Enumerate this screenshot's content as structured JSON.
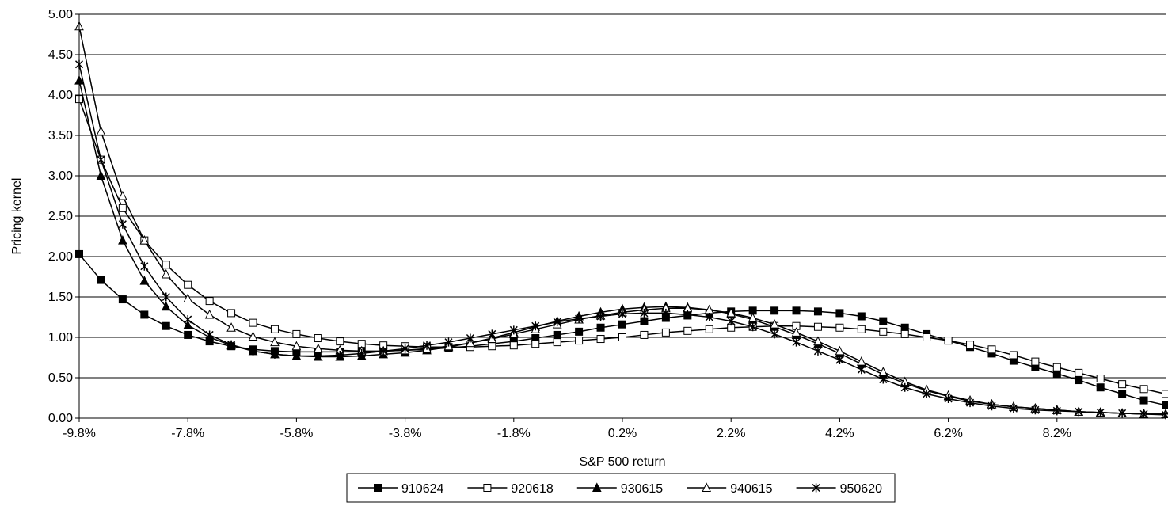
{
  "chart_data": {
    "type": "line",
    "title": "",
    "xlabel": "S&P 500 return",
    "ylabel": "Pricing kernel",
    "xlim": [
      -9.8,
      10.2
    ],
    "ylim": [
      0,
      5
    ],
    "grid": "horizontal",
    "legend_position": "bottom",
    "x_tick_labels": [
      "-9.8%",
      "-7.8%",
      "-5.8%",
      "-3.8%",
      "-1.8%",
      "0.2%",
      "2.2%",
      "4.2%",
      "6.2%",
      "8.2%"
    ],
    "y_tick_labels": [
      "0.00",
      "0.50",
      "1.00",
      "1.50",
      "2.00",
      "2.50",
      "3.00",
      "3.50",
      "4.00",
      "4.50",
      "5.00"
    ],
    "x": [
      -9.8,
      -9.4,
      -9.0,
      -8.6,
      -8.2,
      -7.8,
      -7.4,
      -7.0,
      -6.6,
      -6.2,
      -5.8,
      -5.4,
      -5.0,
      -4.6,
      -4.2,
      -3.8,
      -3.4,
      -3.0,
      -2.6,
      -2.2,
      -1.8,
      -1.4,
      -1.0,
      -0.6,
      -0.2,
      0.2,
      0.6,
      1.0,
      1.4,
      1.8,
      2.2,
      2.6,
      3.0,
      3.4,
      3.8,
      4.2,
      4.6,
      5.0,
      5.4,
      5.8,
      6.2,
      6.6,
      7.0,
      7.4,
      7.8,
      8.2,
      8.6,
      9.0,
      9.4,
      9.8,
      10.2
    ],
    "series": [
      {
        "name": "910624",
        "marker": "filled-square",
        "values": [
          2.03,
          1.71,
          1.47,
          1.28,
          1.14,
          1.03,
          0.95,
          0.89,
          0.85,
          0.83,
          0.82,
          0.82,
          0.82,
          0.82,
          0.83,
          0.84,
          0.85,
          0.87,
          0.89,
          0.92,
          0.95,
          0.99,
          1.03,
          1.07,
          1.12,
          1.16,
          1.2,
          1.24,
          1.27,
          1.3,
          1.32,
          1.33,
          1.33,
          1.33,
          1.32,
          1.3,
          1.26,
          1.2,
          1.12,
          1.04,
          0.96,
          0.88,
          0.8,
          0.71,
          0.63,
          0.55,
          0.47,
          0.38,
          0.3,
          0.22,
          0.16
        ]
      },
      {
        "name": "920618",
        "marker": "open-square",
        "values": [
          3.95,
          3.2,
          2.6,
          2.2,
          1.9,
          1.65,
          1.45,
          1.3,
          1.18,
          1.1,
          1.04,
          0.99,
          0.95,
          0.92,
          0.9,
          0.89,
          0.88,
          0.88,
          0.88,
          0.89,
          0.9,
          0.92,
          0.94,
          0.96,
          0.98,
          1.0,
          1.03,
          1.06,
          1.08,
          1.1,
          1.12,
          1.13,
          1.14,
          1.14,
          1.13,
          1.12,
          1.1,
          1.07,
          1.04,
          1.0,
          0.96,
          0.91,
          0.85,
          0.78,
          0.7,
          0.63,
          0.56,
          0.49,
          0.42,
          0.36,
          0.3
        ]
      },
      {
        "name": "930615",
        "marker": "filled-triangle",
        "values": [
          4.18,
          3.0,
          2.2,
          1.7,
          1.38,
          1.15,
          1.0,
          0.9,
          0.83,
          0.79,
          0.77,
          0.76,
          0.76,
          0.77,
          0.79,
          0.81,
          0.84,
          0.88,
          0.93,
          0.99,
          1.06,
          1.13,
          1.2,
          1.26,
          1.31,
          1.35,
          1.37,
          1.38,
          1.37,
          1.34,
          1.29,
          1.22,
          1.13,
          1.03,
          0.92,
          0.8,
          0.67,
          0.54,
          0.43,
          0.34,
          0.27,
          0.21,
          0.17,
          0.14,
          0.12,
          0.1,
          0.08,
          0.07,
          0.06,
          0.05,
          0.05
        ]
      },
      {
        "name": "940615",
        "marker": "open-triangle",
        "values": [
          4.85,
          3.55,
          2.75,
          2.2,
          1.78,
          1.48,
          1.28,
          1.12,
          1.01,
          0.94,
          0.89,
          0.86,
          0.84,
          0.83,
          0.83,
          0.84,
          0.86,
          0.89,
          0.93,
          0.98,
          1.04,
          1.1,
          1.16,
          1.22,
          1.27,
          1.31,
          1.34,
          1.36,
          1.36,
          1.34,
          1.3,
          1.24,
          1.16,
          1.06,
          0.95,
          0.83,
          0.7,
          0.57,
          0.45,
          0.35,
          0.28,
          0.22,
          0.17,
          0.14,
          0.12,
          0.1,
          0.08,
          0.07,
          0.06,
          0.05,
          0.05
        ]
      },
      {
        "name": "950620",
        "marker": "star",
        "values": [
          4.38,
          3.2,
          2.4,
          1.88,
          1.5,
          1.22,
          1.03,
          0.91,
          0.83,
          0.79,
          0.77,
          0.77,
          0.78,
          0.8,
          0.83,
          0.86,
          0.9,
          0.94,
          0.99,
          1.04,
          1.09,
          1.14,
          1.19,
          1.23,
          1.26,
          1.29,
          1.3,
          1.3,
          1.28,
          1.25,
          1.2,
          1.13,
          1.04,
          0.94,
          0.83,
          0.72,
          0.6,
          0.48,
          0.38,
          0.3,
          0.24,
          0.19,
          0.15,
          0.12,
          0.1,
          0.09,
          0.08,
          0.07,
          0.06,
          0.05,
          0.04
        ]
      }
    ]
  }
}
